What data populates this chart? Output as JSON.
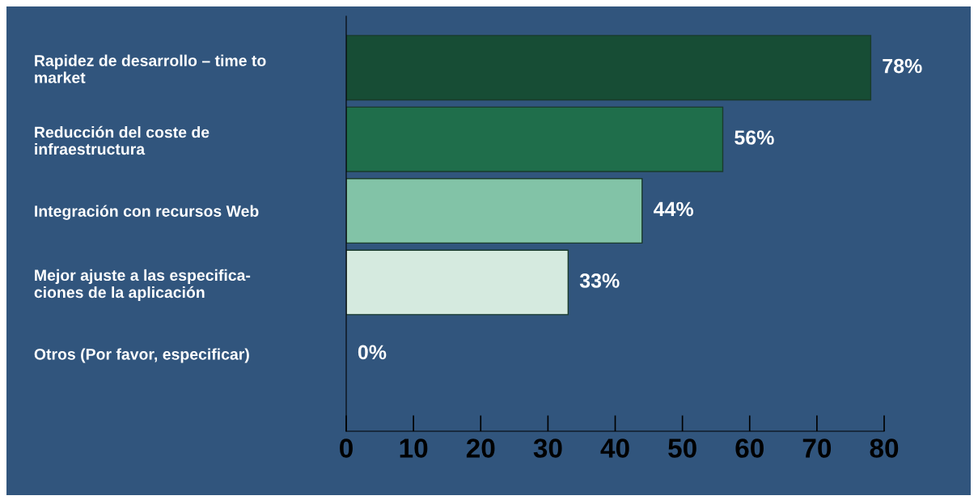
{
  "chart_data": {
    "type": "bar",
    "orientation": "horizontal",
    "categories": [
      "Rapidez de desarrollo – time to\nmarket",
      "Reducción del coste de\ninfraestructura",
      "Integración con recursos Web",
      "Mejor ajuste a las especifica-\nciones de la aplicación",
      "Otros (Por favor, especificar)"
    ],
    "values": [
      78,
      56,
      44,
      33,
      0
    ],
    "colors": [
      "#174d35",
      "#1f6e4b",
      "#82c3a7",
      "#d5eadf",
      "#d5eadf"
    ],
    "value_labels": [
      "78%",
      "56%",
      "44%",
      "33%",
      "0%"
    ],
    "xlim": [
      0,
      80
    ],
    "xticks": [
      0,
      10,
      20,
      30,
      40,
      50,
      60,
      70,
      80
    ],
    "grid": false,
    "legend": false
  }
}
